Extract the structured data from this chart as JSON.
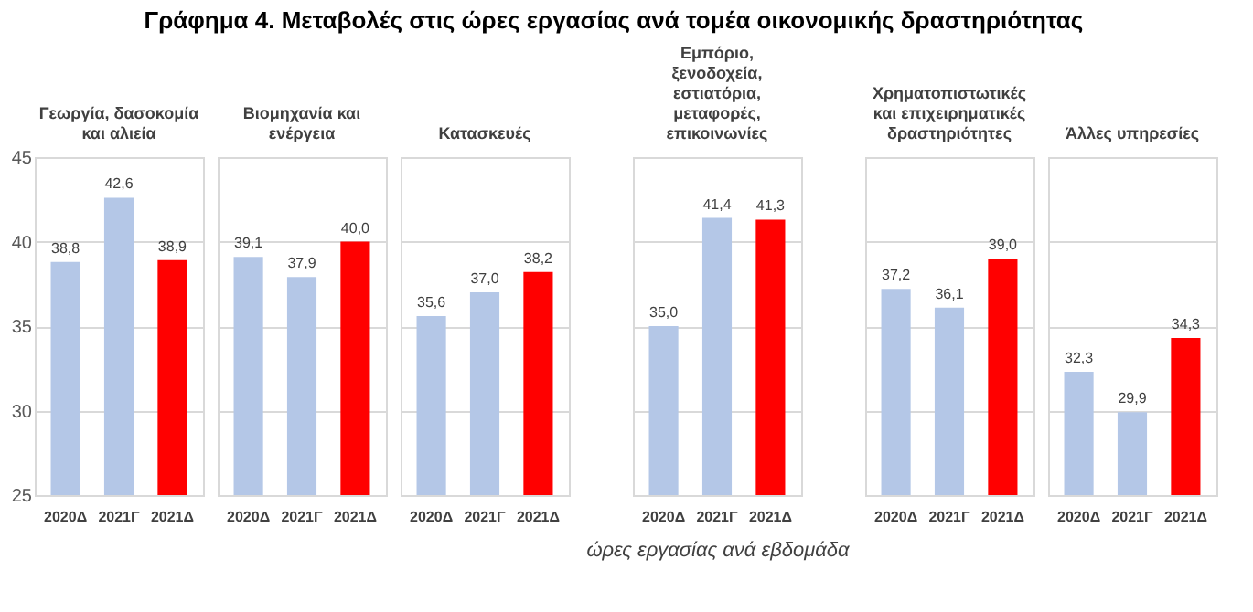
{
  "chart_data": [
    {
      "type": "bar",
      "title": "Γράφημα 4. Μεταβολές στις ώρες εργασίας ανά τομέα οικονομικής δραστηριότητας",
      "subtitle": "Γεωργία, δασοκομία και αλιεία",
      "categories": [
        "2020Δ",
        "2021Γ",
        "2021Δ"
      ],
      "values": [
        38.8,
        42.6,
        38.9
      ],
      "value_labels": [
        "38,8",
        "42,6",
        "38,9"
      ],
      "colors": [
        "#b4c7e7",
        "#b4c7e7",
        "#ff0000"
      ],
      "ylim": [
        25,
        45
      ],
      "yticks": [
        25,
        30,
        35,
        40,
        45
      ],
      "grid": "y",
      "data_labels": true
    },
    {
      "type": "bar",
      "subtitle": "Βιομηχανία και ενέργεια",
      "categories": [
        "2020Δ",
        "2021Γ",
        "2021Δ"
      ],
      "values": [
        39.1,
        37.9,
        40.0
      ],
      "value_labels": [
        "39,1",
        "37,9",
        "40,0"
      ],
      "colors": [
        "#b4c7e7",
        "#b4c7e7",
        "#ff0000"
      ],
      "ylim": [
        25,
        45
      ],
      "yticks": [
        25,
        30,
        35,
        40,
        45
      ],
      "grid": "y",
      "data_labels": true,
      "tick_labels": "x"
    },
    {
      "type": "bar",
      "subtitle": "Κατασκευές",
      "categories": [
        "2020Δ",
        "2021Γ",
        "2021Δ"
      ],
      "values": [
        35.6,
        37.0,
        38.2
      ],
      "value_labels": [
        "35,6",
        "37,0",
        "38,2"
      ],
      "colors": [
        "#b4c7e7",
        "#b4c7e7",
        "#ff0000"
      ],
      "ylim": [
        25,
        45
      ],
      "yticks": [
        25,
        30,
        35,
        40,
        45
      ],
      "grid": "y",
      "data_labels": true,
      "tick_labels": "x"
    },
    {
      "type": "bar",
      "subtitle": "Εμπόριο, ξενοδοχεία, εστιατόρια, μεταφορές, επικοινωνίες",
      "xlabel": "ώρες  εργασίας ανά εβδομάδα",
      "categories": [
        "2020Δ",
        "2021Γ",
        "2021Δ"
      ],
      "values": [
        35.0,
        41.4,
        41.3
      ],
      "value_labels": [
        "35,0",
        "41,4",
        "41,3"
      ],
      "colors": [
        "#b4c7e7",
        "#b4c7e7",
        "#ff0000"
      ],
      "ylim": [
        25,
        45
      ],
      "yticks": [
        25,
        30,
        35,
        40,
        45
      ],
      "grid": "y",
      "data_labels": true,
      "tick_labels": "x"
    },
    {
      "type": "bar",
      "subtitle": "Χρηματοπιστωτικές και επιχειρηματικές δραστηριότητες",
      "categories": [
        "2020Δ",
        "2021Γ",
        "2021Δ"
      ],
      "values": [
        37.2,
        36.1,
        39.0
      ],
      "value_labels": [
        "37,2",
        "36,1",
        "39,0"
      ],
      "colors": [
        "#b4c7e7",
        "#b4c7e7",
        "#ff0000"
      ],
      "ylim": [
        25,
        45
      ],
      "yticks": [
        25,
        30,
        35,
        40,
        45
      ],
      "grid": "y",
      "data_labels": true,
      "tick_labels": "x"
    },
    {
      "type": "bar",
      "subtitle": "Άλλες υπηρεσίες",
      "categories": [
        "2020Δ",
        "2021Γ",
        "2021Δ"
      ],
      "values": [
        32.3,
        29.9,
        34.3
      ],
      "value_labels": [
        "32,3",
        "29,9",
        "34,3"
      ],
      "colors": [
        "#b4c7e7",
        "#b4c7e7",
        "#ff0000"
      ],
      "ylim": [
        25,
        45
      ],
      "yticks": [
        25,
        30,
        35,
        40,
        45
      ],
      "grid": "y",
      "data_labels": true,
      "tick_labels": "x"
    }
  ]
}
